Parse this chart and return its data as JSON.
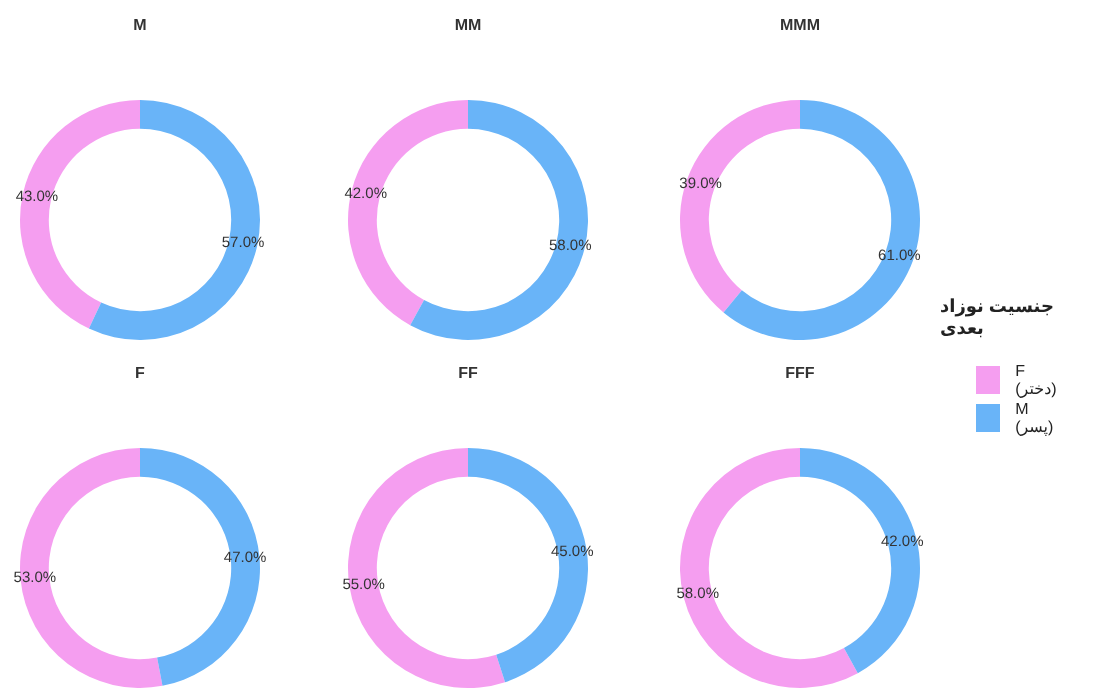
{
  "chart_data": [
    {
      "type": "donut",
      "title": "M",
      "categories": [
        "F (دختر)",
        "M (پسر)"
      ],
      "values": [
        43.0,
        57.0
      ],
      "value_labels": [
        "43.0%",
        "57.0%"
      ],
      "colors": [
        "#f59ef0",
        "#69b4f8"
      ],
      "legend": "right",
      "legend_title": "جنسیت نوزاد بعدی"
    },
    {
      "type": "donut",
      "title": "MM",
      "categories": [
        null,
        null
      ],
      "values": [
        42.0,
        58.0
      ],
      "value_labels": [
        "42.0%",
        "58.0%"
      ],
      "colors": [
        "#f59ef0",
        "#69b4f8"
      ]
    },
    {
      "type": "donut",
      "title": "MMM",
      "categories": [
        null,
        null
      ],
      "values": [
        39.0,
        61.0
      ],
      "value_labels": [
        "39.0%",
        "61.0%"
      ],
      "colors": [
        "#f59ef0",
        "#69b4f8"
      ]
    },
    {
      "type": "donut",
      "title": "F",
      "categories": [
        null,
        null
      ],
      "values": [
        53.0,
        47.0
      ],
      "value_labels": [
        "53.0%",
        "47.0%"
      ],
      "colors": [
        "#f59ef0",
        "#69b4f8"
      ]
    },
    {
      "type": "donut",
      "title": "FF",
      "categories": [
        null,
        null
      ],
      "values": [
        55.0,
        45.0
      ],
      "value_labels": [
        "55.0%",
        "45.0%"
      ],
      "colors": [
        "#f59ef0",
        "#69b4f8"
      ]
    },
    {
      "type": "donut",
      "title": "FFF",
      "categories": [
        null,
        null
      ],
      "values": [
        58.0,
        42.0
      ],
      "value_labels": [
        "58.0%",
        "42.0%"
      ],
      "colors": [
        "#f59ef0",
        "#69b4f8"
      ]
    }
  ]
}
